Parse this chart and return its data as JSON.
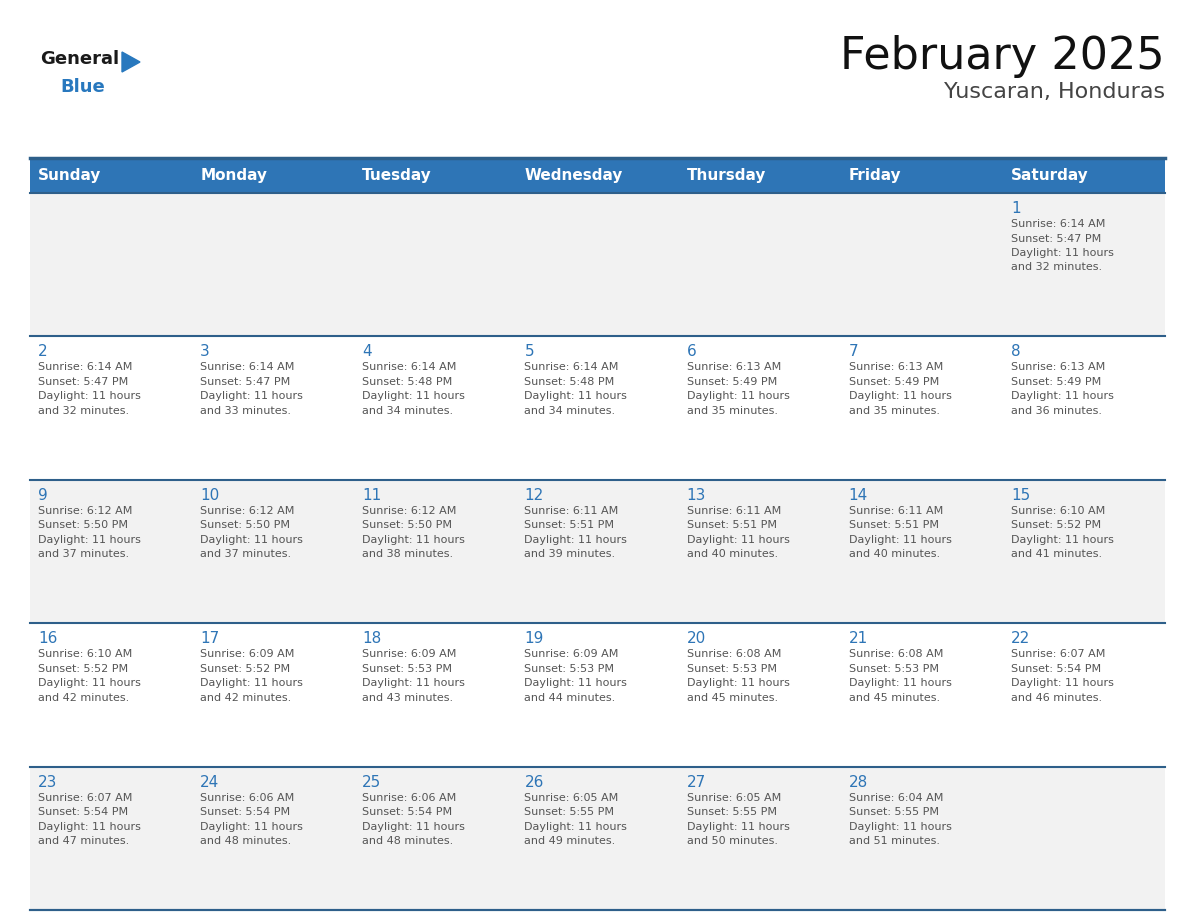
{
  "title": "February 2025",
  "subtitle": "Yuscaran, Honduras",
  "header_bg": "#2e75b6",
  "header_text_color": "#ffffff",
  "day_names": [
    "Sunday",
    "Monday",
    "Tuesday",
    "Wednesday",
    "Thursday",
    "Friday",
    "Saturday"
  ],
  "cell_bg_row0": "#f2f2f2",
  "cell_bg_odd": "#ffffff",
  "cell_bg_even": "#f2f2f2",
  "cell_border": "#2e5f8a",
  "date_color": "#2e75b6",
  "text_color": "#555555",
  "logo_dark_color": "#1a1a1a",
  "logo_blue_color": "#2878be",
  "days": [
    {
      "day": 1,
      "row": 0,
      "col": 6,
      "sunrise": "6:14 AM",
      "sunset": "5:47 PM",
      "daylight_line1": "Daylight: 11 hours",
      "daylight_line2": "and 32 minutes."
    },
    {
      "day": 2,
      "row": 1,
      "col": 0,
      "sunrise": "6:14 AM",
      "sunset": "5:47 PM",
      "daylight_line1": "Daylight: 11 hours",
      "daylight_line2": "and 32 minutes."
    },
    {
      "day": 3,
      "row": 1,
      "col": 1,
      "sunrise": "6:14 AM",
      "sunset": "5:47 PM",
      "daylight_line1": "Daylight: 11 hours",
      "daylight_line2": "and 33 minutes."
    },
    {
      "day": 4,
      "row": 1,
      "col": 2,
      "sunrise": "6:14 AM",
      "sunset": "5:48 PM",
      "daylight_line1": "Daylight: 11 hours",
      "daylight_line2": "and 34 minutes."
    },
    {
      "day": 5,
      "row": 1,
      "col": 3,
      "sunrise": "6:14 AM",
      "sunset": "5:48 PM",
      "daylight_line1": "Daylight: 11 hours",
      "daylight_line2": "and 34 minutes."
    },
    {
      "day": 6,
      "row": 1,
      "col": 4,
      "sunrise": "6:13 AM",
      "sunset": "5:49 PM",
      "daylight_line1": "Daylight: 11 hours",
      "daylight_line2": "and 35 minutes."
    },
    {
      "day": 7,
      "row": 1,
      "col": 5,
      "sunrise": "6:13 AM",
      "sunset": "5:49 PM",
      "daylight_line1": "Daylight: 11 hours",
      "daylight_line2": "and 35 minutes."
    },
    {
      "day": 8,
      "row": 1,
      "col": 6,
      "sunrise": "6:13 AM",
      "sunset": "5:49 PM",
      "daylight_line1": "Daylight: 11 hours",
      "daylight_line2": "and 36 minutes."
    },
    {
      "day": 9,
      "row": 2,
      "col": 0,
      "sunrise": "6:12 AM",
      "sunset": "5:50 PM",
      "daylight_line1": "Daylight: 11 hours",
      "daylight_line2": "and 37 minutes."
    },
    {
      "day": 10,
      "row": 2,
      "col": 1,
      "sunrise": "6:12 AM",
      "sunset": "5:50 PM",
      "daylight_line1": "Daylight: 11 hours",
      "daylight_line2": "and 37 minutes."
    },
    {
      "day": 11,
      "row": 2,
      "col": 2,
      "sunrise": "6:12 AM",
      "sunset": "5:50 PM",
      "daylight_line1": "Daylight: 11 hours",
      "daylight_line2": "and 38 minutes."
    },
    {
      "day": 12,
      "row": 2,
      "col": 3,
      "sunrise": "6:11 AM",
      "sunset": "5:51 PM",
      "daylight_line1": "Daylight: 11 hours",
      "daylight_line2": "and 39 minutes."
    },
    {
      "day": 13,
      "row": 2,
      "col": 4,
      "sunrise": "6:11 AM",
      "sunset": "5:51 PM",
      "daylight_line1": "Daylight: 11 hours",
      "daylight_line2": "and 40 minutes."
    },
    {
      "day": 14,
      "row": 2,
      "col": 5,
      "sunrise": "6:11 AM",
      "sunset": "5:51 PM",
      "daylight_line1": "Daylight: 11 hours",
      "daylight_line2": "and 40 minutes."
    },
    {
      "day": 15,
      "row": 2,
      "col": 6,
      "sunrise": "6:10 AM",
      "sunset": "5:52 PM",
      "daylight_line1": "Daylight: 11 hours",
      "daylight_line2": "and 41 minutes."
    },
    {
      "day": 16,
      "row": 3,
      "col": 0,
      "sunrise": "6:10 AM",
      "sunset": "5:52 PM",
      "daylight_line1": "Daylight: 11 hours",
      "daylight_line2": "and 42 minutes."
    },
    {
      "day": 17,
      "row": 3,
      "col": 1,
      "sunrise": "6:09 AM",
      "sunset": "5:52 PM",
      "daylight_line1": "Daylight: 11 hours",
      "daylight_line2": "and 42 minutes."
    },
    {
      "day": 18,
      "row": 3,
      "col": 2,
      "sunrise": "6:09 AM",
      "sunset": "5:53 PM",
      "daylight_line1": "Daylight: 11 hours",
      "daylight_line2": "and 43 minutes."
    },
    {
      "day": 19,
      "row": 3,
      "col": 3,
      "sunrise": "6:09 AM",
      "sunset": "5:53 PM",
      "daylight_line1": "Daylight: 11 hours",
      "daylight_line2": "and 44 minutes."
    },
    {
      "day": 20,
      "row": 3,
      "col": 4,
      "sunrise": "6:08 AM",
      "sunset": "5:53 PM",
      "daylight_line1": "Daylight: 11 hours",
      "daylight_line2": "and 45 minutes."
    },
    {
      "day": 21,
      "row": 3,
      "col": 5,
      "sunrise": "6:08 AM",
      "sunset": "5:53 PM",
      "daylight_line1": "Daylight: 11 hours",
      "daylight_line2": "and 45 minutes."
    },
    {
      "day": 22,
      "row": 3,
      "col": 6,
      "sunrise": "6:07 AM",
      "sunset": "5:54 PM",
      "daylight_line1": "Daylight: 11 hours",
      "daylight_line2": "and 46 minutes."
    },
    {
      "day": 23,
      "row": 4,
      "col": 0,
      "sunrise": "6:07 AM",
      "sunset": "5:54 PM",
      "daylight_line1": "Daylight: 11 hours",
      "daylight_line2": "and 47 minutes."
    },
    {
      "day": 24,
      "row": 4,
      "col": 1,
      "sunrise": "6:06 AM",
      "sunset": "5:54 PM",
      "daylight_line1": "Daylight: 11 hours",
      "daylight_line2": "and 48 minutes."
    },
    {
      "day": 25,
      "row": 4,
      "col": 2,
      "sunrise": "6:06 AM",
      "sunset": "5:54 PM",
      "daylight_line1": "Daylight: 11 hours",
      "daylight_line2": "and 48 minutes."
    },
    {
      "day": 26,
      "row": 4,
      "col": 3,
      "sunrise": "6:05 AM",
      "sunset": "5:55 PM",
      "daylight_line1": "Daylight: 11 hours",
      "daylight_line2": "and 49 minutes."
    },
    {
      "day": 27,
      "row": 4,
      "col": 4,
      "sunrise": "6:05 AM",
      "sunset": "5:55 PM",
      "daylight_line1": "Daylight: 11 hours",
      "daylight_line2": "and 50 minutes."
    },
    {
      "day": 28,
      "row": 4,
      "col": 5,
      "sunrise": "6:04 AM",
      "sunset": "5:55 PM",
      "daylight_line1": "Daylight: 11 hours",
      "daylight_line2": "and 51 minutes."
    }
  ]
}
